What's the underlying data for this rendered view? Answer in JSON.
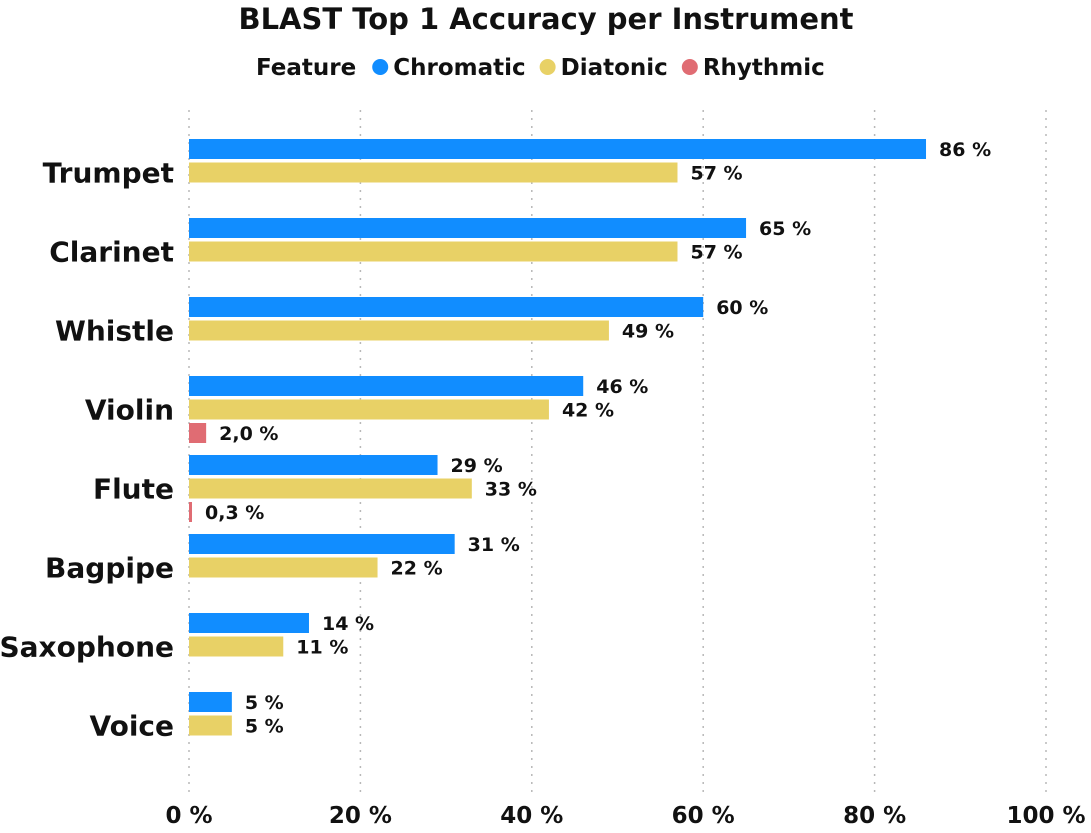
{
  "chart_data": {
    "type": "bar",
    "orientation": "horizontal",
    "title": "BLAST Top 1 Accuracy per Instrument",
    "legend": {
      "title": "Feature",
      "placement": "top-center"
    },
    "categories": [
      "Trumpet",
      "Clarinet",
      "Whistle",
      "Violin",
      "Flute",
      "Bagpipe",
      "Saxophone",
      "Voice"
    ],
    "series": [
      {
        "name": "Chromatic",
        "color": "#118DFF",
        "values": [
          86,
          65,
          60,
          46,
          29,
          31,
          14,
          5
        ],
        "labels": [
          "86 %",
          "65 %",
          "60 %",
          "46 %",
          "29 %",
          "31 %",
          "14 %",
          "5 %"
        ]
      },
      {
        "name": "Diatonic",
        "color": "#E8D166",
        "values": [
          57,
          57,
          49,
          42,
          33,
          22,
          11,
          5
        ],
        "labels": [
          "57 %",
          "57 %",
          "49 %",
          "42 %",
          "33 %",
          "22 %",
          "11 %",
          "5 %"
        ]
      },
      {
        "name": "Rhythmic",
        "color": "#E06C73",
        "values": [
          null,
          null,
          null,
          2.0,
          0.3,
          null,
          null,
          null
        ],
        "labels": [
          null,
          null,
          null,
          "2,0 %",
          "0,3 %",
          null,
          null,
          null
        ]
      }
    ],
    "x_axis": {
      "ticks": [
        0,
        20,
        40,
        60,
        80,
        100
      ],
      "tick_labels": [
        "0 %",
        "20 %",
        "40 %",
        "60 %",
        "80 %",
        "100 %"
      ],
      "xlim": [
        0,
        100
      ]
    },
    "grid": "vertical-dotted"
  }
}
